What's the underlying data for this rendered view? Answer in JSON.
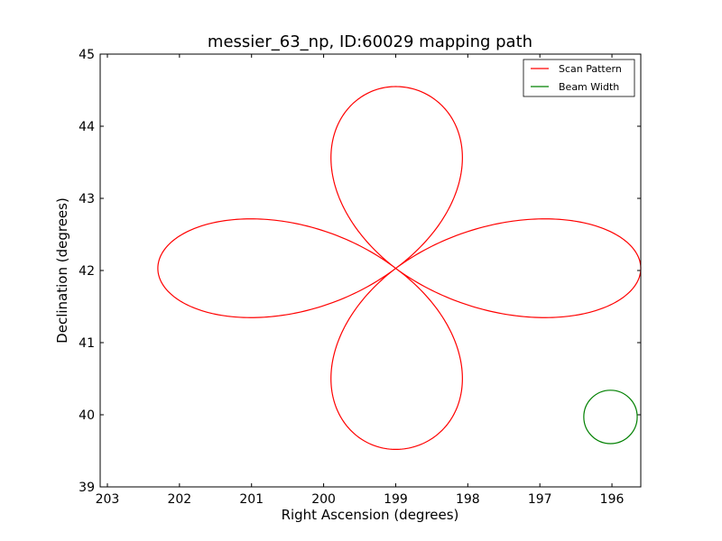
{
  "chart_data": {
    "type": "line",
    "title": "messier_63_np, ID:60029 mapping path",
    "xlabel": "Right Ascension (degrees)",
    "ylabel": "Declination (degrees)",
    "xlim": [
      203.1,
      195.6
    ],
    "ylim": [
      39,
      45
    ],
    "x_inverted": true,
    "xticks": [
      203,
      202,
      201,
      200,
      199,
      198,
      197,
      196
    ],
    "yticks": [
      39,
      40,
      41,
      42,
      43,
      44,
      45
    ],
    "legend_position": "top-right",
    "series": [
      {
        "name": "Scan Pattern",
        "color": "#ff0000",
        "shape": "four-petal rose scan",
        "center": {
          "ra": 199.0,
          "dec": 42.03
        },
        "ra_extent": [
          195.6,
          202.3
        ],
        "dec_extent": [
          39.52,
          44.55
        ]
      },
      {
        "name": "Beam Width",
        "color": "#008000",
        "shape": "circle",
        "center": {
          "ra": 196.02,
          "dec": 39.97
        },
        "radius_dec": 0.37
      }
    ],
    "legend": [
      "Scan Pattern",
      "Beam Width"
    ]
  }
}
